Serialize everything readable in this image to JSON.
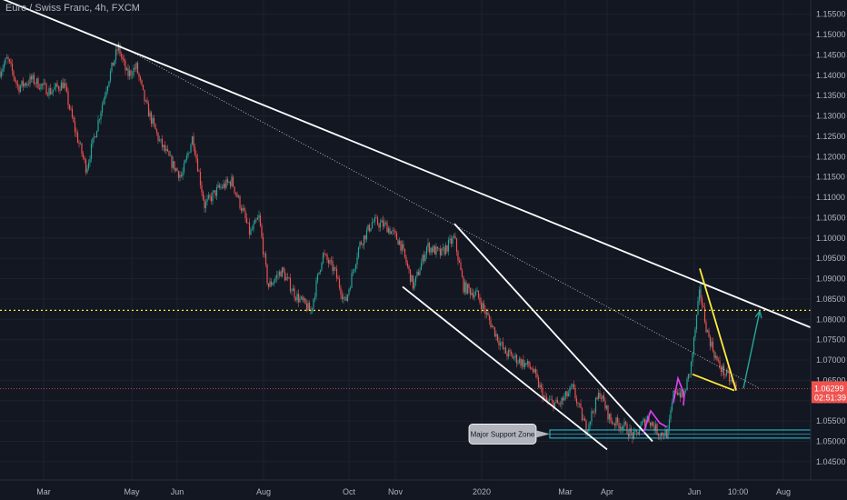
{
  "chart_data": {
    "type": "candlestick",
    "title": "Euro / Swiss Franc, 4h, FXCM",
    "y_ticks": [
      "1.15500",
      "1.15000",
      "1.14500",
      "1.14000",
      "1.13500",
      "1.13000",
      "1.12500",
      "1.12000",
      "1.11500",
      "1.11000",
      "1.10500",
      "1.10000",
      "1.09500",
      "1.09000",
      "1.08500",
      "1.08000",
      "1.07500",
      "1.07000",
      "1.06500",
      "1.06000",
      "1.05500",
      "1.05000",
      "1.04500"
    ],
    "ylim": [
      1.0405,
      1.1585
    ],
    "x_ticks": [
      {
        "label": "Mar",
        "index": 48
      },
      {
        "label": "May",
        "index": 145
      },
      {
        "label": "Jun",
        "index": 195
      },
      {
        "label": "Aug",
        "index": 290
      },
      {
        "label": "Oct",
        "index": 384
      },
      {
        "label": "Nov",
        "index": 435
      },
      {
        "label": "2020",
        "index": 530
      },
      {
        "label": "Mar",
        "index": 622
      },
      {
        "label": "Apr",
        "index": 668
      },
      {
        "label": "Jun",
        "index": 764
      },
      {
        "label": "10:00",
        "index": 812
      },
      {
        "label": "Aug",
        "index": 862
      }
    ],
    "xlim": [
      0,
      892
    ],
    "price_path": [
      [
        0,
        1.141
      ],
      [
        8,
        1.144
      ],
      [
        20,
        1.137
      ],
      [
        35,
        1.139
      ],
      [
        55,
        1.136
      ],
      [
        70,
        1.138
      ],
      [
        82,
        1.127
      ],
      [
        95,
        1.117
      ],
      [
        105,
        1.126
      ],
      [
        118,
        1.138
      ],
      [
        130,
        1.147
      ],
      [
        140,
        1.14
      ],
      [
        150,
        1.142
      ],
      [
        160,
        1.133
      ],
      [
        175,
        1.124
      ],
      [
        190,
        1.118
      ],
      [
        200,
        1.115
      ],
      [
        212,
        1.125
      ],
      [
        225,
        1.108
      ],
      [
        240,
        1.112
      ],
      [
        255,
        1.114
      ],
      [
        268,
        1.106
      ],
      [
        275,
        1.101
      ],
      [
        285,
        1.105
      ],
      [
        295,
        1.088
      ],
      [
        310,
        1.092
      ],
      [
        325,
        1.086
      ],
      [
        342,
        1.082
      ],
      [
        355,
        1.096
      ],
      [
        368,
        1.092
      ],
      [
        380,
        1.084
      ],
      [
        395,
        1.098
      ],
      [
        410,
        1.104
      ],
      [
        425,
        1.103
      ],
      [
        440,
        1.099
      ],
      [
        455,
        1.088
      ],
      [
        470,
        1.098
      ],
      [
        485,
        1.096
      ],
      [
        500,
        1.1
      ],
      [
        510,
        1.088
      ],
      [
        525,
        1.086
      ],
      [
        540,
        1.079
      ],
      [
        555,
        1.072
      ],
      [
        570,
        1.07
      ],
      [
        585,
        1.068
      ],
      [
        600,
        1.06
      ],
      [
        615,
        1.059
      ],
      [
        630,
        1.063
      ],
      [
        645,
        1.053
      ],
      [
        660,
        1.062
      ],
      [
        672,
        1.055
      ],
      [
        685,
        1.054
      ],
      [
        698,
        1.051
      ],
      [
        712,
        1.056
      ],
      [
        725,
        1.052
      ],
      [
        735,
        1.052
      ],
      [
        742,
        1.063
      ],
      [
        752,
        1.061
      ],
      [
        760,
        1.068
      ],
      [
        770,
        1.087
      ],
      [
        778,
        1.077
      ],
      [
        790,
        1.069
      ],
      [
        800,
        1.066
      ],
      [
        810,
        1.063
      ]
    ],
    "price_extras": [
      {
        "index": 130,
        "value": 1.1478
      },
      {
        "index": 771,
        "value": 1.0888
      },
      {
        "index": 735,
        "value": 1.0505
      },
      {
        "index": 342,
        "value": 1.0812
      }
    ],
    "trendlines": [
      {
        "name": "main-downtrend",
        "color": "#ffffff",
        "from": [
          0,
          1.159
        ],
        "to": [
          892,
          1.078
        ]
      },
      {
        "name": "dotted-trend",
        "color": "#d1d4dc",
        "dashed": true,
        "from": [
          130,
          1.1475
        ],
        "to": [
          836,
          1.063
        ]
      },
      {
        "name": "channel-upper",
        "color": "#ffffff",
        "from": [
          500,
          1.1035
        ],
        "to": [
          718,
          1.05
        ]
      },
      {
        "name": "channel-lower",
        "color": "#ffffff",
        "from": [
          443,
          1.088
        ],
        "to": [
          668,
          1.048
        ]
      },
      {
        "name": "wedge-upper",
        "color": "#ffeb3b",
        "from": [
          770,
          1.0925
        ],
        "to": [
          810,
          1.0625
        ]
      },
      {
        "name": "wedge-lower",
        "color": "#ffeb3b",
        "from": [
          762,
          1.0665
        ],
        "to": [
          808,
          1.0625
        ]
      }
    ],
    "projection_arrow": {
      "color": "#26a69a",
      "points": [
        [
          818,
          1.063
        ],
        [
          836,
          1.082
        ]
      ]
    },
    "pink_flags": [
      {
        "color": "#e040fb",
        "points": [
          [
            708,
            1.052
          ],
          [
            716,
            1.0575
          ],
          [
            726,
            1.0545
          ],
          [
            734,
            1.0535
          ]
        ]
      },
      {
        "color": "#e040fb",
        "points": [
          [
            741,
            1.0595
          ],
          [
            746,
            1.0655
          ],
          [
            753,
            1.0615
          ],
          [
            752,
            1.0588
          ]
        ]
      }
    ],
    "horizontal_levels": [
      {
        "name": "resistance-level",
        "value": 1.0822,
        "color": "#ffeb3b",
        "style": "dotted"
      },
      {
        "name": "current-price-line",
        "value": 1.06299,
        "color": "#ef5350",
        "style": "dotted"
      }
    ],
    "support_zone": {
      "label": "Major Support Zone",
      "from_index": 605,
      "top": 1.0528,
      "bottom": 1.0508,
      "color": "#26c6da"
    },
    "price_tag": {
      "price": "1.06299",
      "countdown": "02:51:39",
      "color": "#ef5350"
    },
    "colors": {
      "background": "#131722",
      "up": "#26a69a",
      "down": "#ef5350",
      "axis_text": "#b2b5be",
      "grid": "#1e222d"
    }
  }
}
